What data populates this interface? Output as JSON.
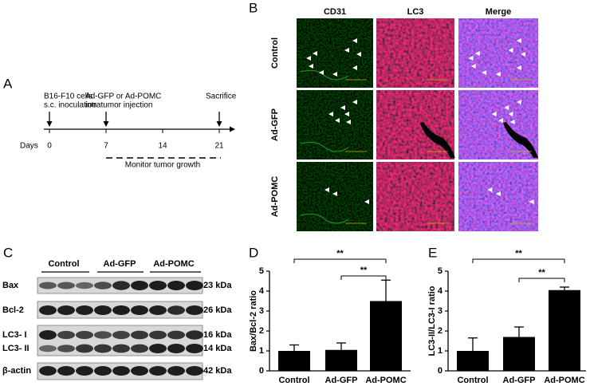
{
  "panel_labels": [
    "A",
    "B",
    "C",
    "D",
    "E"
  ],
  "timeline": {
    "events": [
      {
        "label_lines": [
          "B16-F10 cells",
          "s.c. inoculation"
        ]
      },
      {
        "label_lines": [
          "Ad-GFP or Ad-POMC",
          "intratumor injection"
        ]
      },
      {
        "label_lines": [
          "Sacrifice"
        ]
      }
    ],
    "axis_label": "Days",
    "ticks": [
      "0",
      "7",
      "14",
      "21"
    ],
    "span_label": "Monitor tumor growth"
  },
  "microscopy": {
    "columns": [
      "CD31",
      "LC3",
      "Merge"
    ],
    "rows": [
      "Control",
      "Ad-GFP",
      "Ad-POMC"
    ]
  },
  "western_blot": {
    "groups": [
      "Control",
      "Ad-GFP",
      "Ad-POMC"
    ],
    "bands": [
      {
        "name": "Bax",
        "size": "23 kDa"
      },
      {
        "name": "Bcl-2",
        "size": "26 kDa"
      },
      {
        "name": "LC3- I",
        "size": "16 kDa"
      },
      {
        "name": "LC3- II",
        "size": "14 kDa"
      },
      {
        "name": "β-actin",
        "size": "42 kDa"
      }
    ]
  },
  "chart_data": [
    {
      "type": "bar",
      "ylabel": "Bax/Bcl-2 ratio",
      "categories": [
        "Control",
        "Ad-GFP",
        "Ad-POMC"
      ],
      "values": [
        1.0,
        1.05,
        3.5
      ],
      "errors": [
        0.3,
        0.35,
        1.05
      ],
      "color": "#000000",
      "ylim": [
        0,
        5
      ],
      "yticks": [
        0,
        1,
        2,
        3,
        4,
        5
      ],
      "annotations": [
        "**",
        "**"
      ]
    },
    {
      "type": "bar",
      "ylabel": "LC3-II/LC3-I ratio",
      "categories": [
        "Control",
        "Ad-GFP",
        "Ad-POMC"
      ],
      "values": [
        1.0,
        1.7,
        4.05
      ],
      "errors": [
        0.65,
        0.5,
        0.15
      ],
      "color": "#000000",
      "ylim": [
        0,
        5
      ],
      "yticks": [
        0,
        1,
        2,
        3,
        4,
        5
      ],
      "annotations": [
        "**",
        "**"
      ]
    }
  ]
}
